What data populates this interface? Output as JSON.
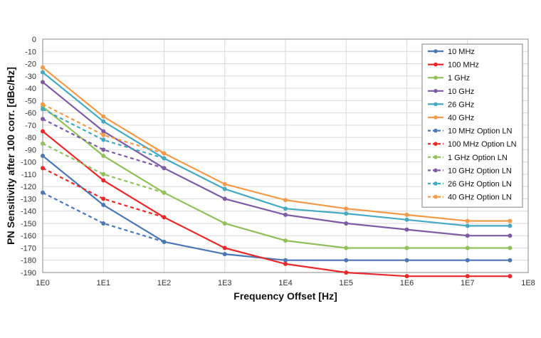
{
  "chart_data": {
    "type": "line",
    "title": "",
    "xlabel": "Frequency Offset [Hz]",
    "ylabel": "PN Sensitivity after 100 corr. [dBc/Hz]",
    "x_scale": "log10",
    "xlim_exp": [
      0,
      8
    ],
    "ylim": [
      -190,
      0
    ],
    "y_step": 10,
    "grid": true,
    "legend_position": "top-right",
    "x_tick_labels": [
      "1E0",
      "1E1",
      "1E2",
      "1E3",
      "1E4",
      "1E5",
      "1E6",
      "1E7",
      "1E8"
    ],
    "series": [
      {
        "name": "10 MHz",
        "color": "#4a78b5",
        "dash": false,
        "x_exp": [
          0,
          1,
          2,
          3,
          4,
          5,
          6,
          7,
          7.7
        ],
        "values": [
          -95,
          -135,
          -165,
          -175,
          -180,
          -180,
          -180,
          -180,
          -180
        ]
      },
      {
        "name": "100 MHz",
        "color": "#e8282b",
        "dash": false,
        "x_exp": [
          0,
          1,
          2,
          3,
          4,
          5,
          6,
          7,
          7.7
        ],
        "values": [
          -75,
          -115,
          -145,
          -170,
          -183,
          -190,
          -193,
          -193,
          -193
        ]
      },
      {
        "name": "1 GHz",
        "color": "#92c05a",
        "dash": false,
        "x_exp": [
          0,
          1,
          2,
          3,
          4,
          5,
          6,
          7,
          7.7
        ],
        "values": [
          -55,
          -95,
          -125,
          -150,
          -164,
          -170,
          -170,
          -170,
          -170
        ]
      },
      {
        "name": "10 GHz",
        "color": "#7e5ba4",
        "dash": false,
        "x_exp": [
          0,
          1,
          2,
          3,
          4,
          5,
          6,
          7,
          7.7
        ],
        "values": [
          -35,
          -75,
          -105,
          -130,
          -143,
          -150,
          -155,
          -160,
          -160
        ]
      },
      {
        "name": "26 GHz",
        "color": "#45a9c4",
        "dash": false,
        "x_exp": [
          0,
          1,
          2,
          3,
          4,
          5,
          6,
          7,
          7.7
        ],
        "values": [
          -27,
          -67,
          -97,
          -122,
          -138,
          -142,
          -147,
          -152,
          -152
        ]
      },
      {
        "name": "40 GHz",
        "color": "#f29a4a",
        "dash": false,
        "x_exp": [
          0,
          1,
          2,
          3,
          4,
          5,
          6,
          7,
          7.7
        ],
        "values": [
          -23,
          -63,
          -93,
          -118,
          -131,
          -138,
          -143,
          -148,
          -148
        ]
      },
      {
        "name": "10 MHz Option LN",
        "color": "#4a78b5",
        "dash": true,
        "x_exp": [
          0,
          1,
          2
        ],
        "values": [
          -125,
          -150,
          -165
        ]
      },
      {
        "name": "100 MHz Option LN",
        "color": "#e8282b",
        "dash": true,
        "x_exp": [
          0,
          1,
          2
        ],
        "values": [
          -105,
          -130,
          -145
        ]
      },
      {
        "name": "1 GHz Option LN",
        "color": "#92c05a",
        "dash": true,
        "x_exp": [
          0,
          1,
          2
        ],
        "values": [
          -85,
          -110,
          -125
        ]
      },
      {
        "name": "10 GHz Option LN",
        "color": "#7e5ba4",
        "dash": true,
        "x_exp": [
          0,
          1,
          2
        ],
        "values": [
          -65,
          -90,
          -105
        ]
      },
      {
        "name": "26 GHz Option LN",
        "color": "#45a9c4",
        "dash": true,
        "x_exp": [
          0,
          1,
          2
        ],
        "values": [
          -57,
          -82,
          -97
        ]
      },
      {
        "name": "40 GHz Option LN",
        "color": "#f29a4a",
        "dash": true,
        "x_exp": [
          0,
          1,
          2
        ],
        "values": [
          -53,
          -78,
          -93
        ]
      }
    ]
  }
}
